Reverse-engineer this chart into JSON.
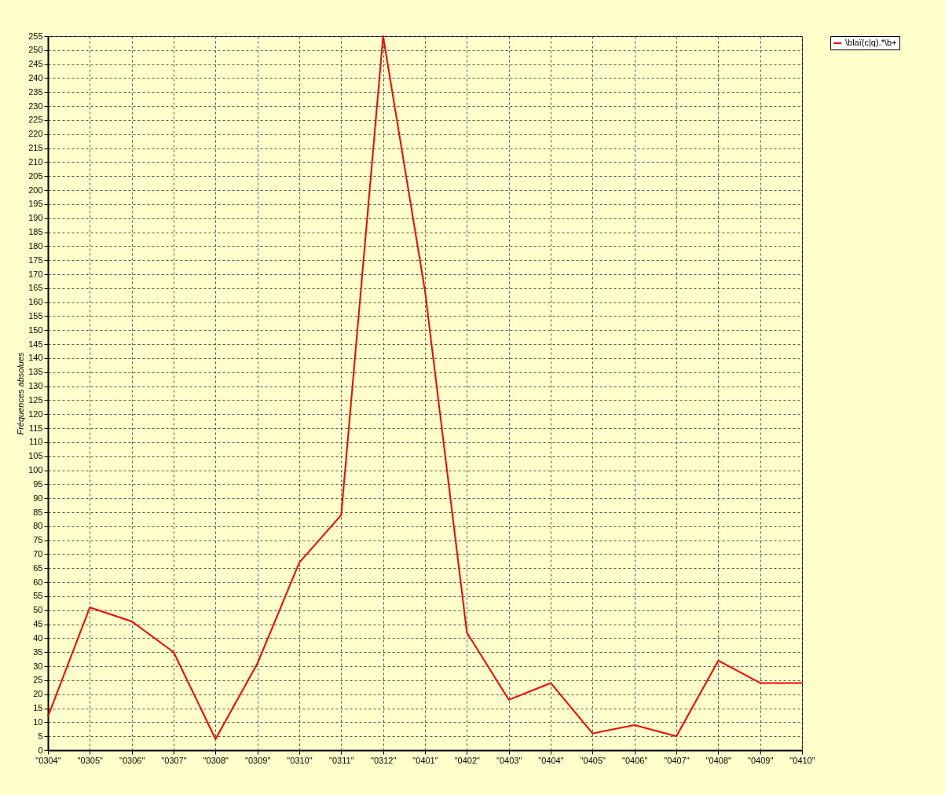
{
  "chart_data": {
    "type": "line",
    "ylabel": "Fréquences absolues",
    "categories": [
      "\"0304\"",
      "\"0305\"",
      "\"0306\"",
      "\"0307\"",
      "\"0308\"",
      "\"0309\"",
      "\"0310\"",
      "\"0311\"",
      "\"0312\"",
      "\"0401\"",
      "\"0402\"",
      "\"0403\"",
      "\"0404\"",
      "\"0405\"",
      "\"0406\"",
      "\"0407\"",
      "\"0408\"",
      "\"0409\"",
      "\"0410\""
    ],
    "series": [
      {
        "name": "\\blaï(c|q).*\\b+",
        "color": "#ff0000",
        "values": [
          12,
          51,
          46,
          35,
          4,
          31,
          67,
          84,
          255,
          164,
          42,
          18,
          24,
          6,
          9,
          5,
          32,
          24,
          24
        ]
      }
    ],
    "ylim": [
      0,
      255
    ],
    "yticks": [
      0,
      5,
      10,
      15,
      20,
      25,
      30,
      35,
      40,
      45,
      50,
      55,
      60,
      65,
      70,
      75,
      80,
      85,
      90,
      95,
      100,
      105,
      110,
      115,
      120,
      125,
      130,
      135,
      140,
      145,
      150,
      155,
      160,
      165,
      170,
      175,
      180,
      185,
      190,
      195,
      200,
      205,
      210,
      215,
      220,
      225,
      230,
      235,
      240,
      245,
      250,
      255
    ],
    "grid": true,
    "legend": "top right",
    "marker": "none",
    "line_style": "solid"
  }
}
